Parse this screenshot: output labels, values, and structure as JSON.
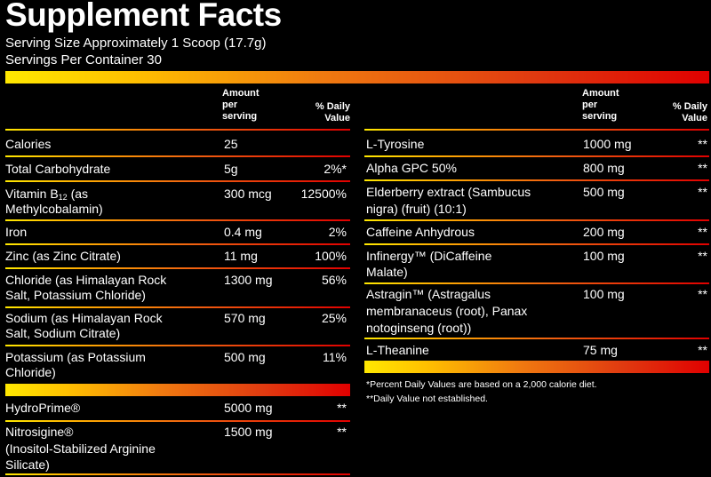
{
  "title": "Supplement Facts",
  "serving_size": "Serving Size Approximately 1 Scoop (17.7g)",
  "servings_per_container": "Servings Per Container 30",
  "headers": {
    "amount": [
      "Amount",
      "per",
      "serving"
    ],
    "dv": [
      "% Daily",
      "Value"
    ]
  },
  "left_rows": [
    {
      "name": "Calories",
      "amount": "25",
      "dv": ""
    },
    {
      "name": "Total Carbohydrate",
      "amount": "5g",
      "dv": "2%*"
    },
    {
      "name": "Vitamin B",
      "name_sub": "12",
      "name_rest": " (as",
      "name2": "Methylcobalamin)",
      "amount": "300 mcg",
      "dv": "12500%"
    },
    {
      "name": "Iron",
      "amount": "0.4 mg",
      "dv": "2%"
    },
    {
      "name": "Zinc (as Zinc Citrate)",
      "amount": "11 mg",
      "dv": "100%"
    },
    {
      "name": "Chloride (as Himalayan Rock",
      "name2": "Salt, Potassium Chloride)",
      "amount": "1300 mg",
      "dv": "56%"
    },
    {
      "name": "Sodium (as Himalayan Rock",
      "name2": "Salt, Sodium Citrate)",
      "amount": "570 mg",
      "dv": "25%"
    },
    {
      "name": "Potassium (as Potassium",
      "name2": "Chloride)",
      "amount": "500 mg",
      "dv": "11%"
    }
  ],
  "left_rows_2": [
    {
      "name": "HydroPrime®",
      "amount": "5000 mg",
      "dv": "**"
    },
    {
      "name": "Nitrosigine®",
      "name2": "(Inositol-Stabilized Arginine",
      "name3": "Silicate)",
      "amount": "1500 mg",
      "dv": "**"
    }
  ],
  "right_rows": [
    {
      "name": "L-Tyrosine",
      "amount": "1000 mg",
      "dv": "**"
    },
    {
      "name": "Alpha GPC 50%",
      "amount": "800 mg",
      "dv": "**"
    },
    {
      "name": "Elderberry extract (Sambucus",
      "name2": "nigra) (fruit) (10:1)",
      "amount": "500 mg",
      "dv": "**"
    },
    {
      "name": "Caffeine Anhydrous",
      "amount": "200 mg",
      "dv": "**"
    },
    {
      "name": "Infinergy™ (DiCaffeine",
      "name2": "Malate)",
      "amount": "100 mg",
      "dv": "**"
    },
    {
      "name": "Astragin™ (Astragalus",
      "name2": "membranaceus (root), Panax",
      "name3": "notoginseng (root))",
      "amount": "100 mg",
      "dv": "**"
    },
    {
      "name": "L-Theanine",
      "amount": "75 mg",
      "dv": "**"
    }
  ],
  "footnotes": [
    "*Percent Daily Values are based on a 2,000 calorie diet.",
    "**Daily Value not established."
  ]
}
